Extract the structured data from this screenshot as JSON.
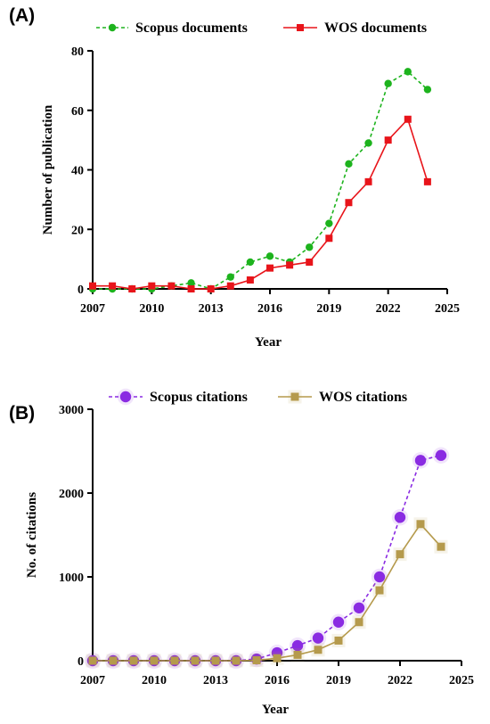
{
  "chart_data": [
    {
      "type": "line",
      "panel_label": "(A)",
      "xlabel": "Year",
      "ylabel": "Number of publication",
      "xlim": [
        2007,
        2025
      ],
      "ylim": [
        0,
        80
      ],
      "x_ticks": [
        2007,
        2010,
        2013,
        2016,
        2019,
        2022,
        2025
      ],
      "y_ticks": [
        0,
        20,
        40,
        60,
        80
      ],
      "x": [
        2007,
        2008,
        2009,
        2010,
        2011,
        2012,
        2013,
        2014,
        2015,
        2016,
        2017,
        2018,
        2019,
        2020,
        2021,
        2022,
        2023,
        2024
      ],
      "grid": false,
      "legend_position": "top",
      "series": [
        {
          "name": "Scopus documents",
          "values": [
            0,
            0,
            0,
            0,
            1,
            2,
            0,
            4,
            9,
            11,
            9,
            14,
            22,
            42,
            49,
            69,
            73,
            67
          ],
          "color": "#1db31d",
          "line_style": "dashed",
          "marker": "circle"
        },
        {
          "name": "WOS documents",
          "values": [
            1,
            1,
            0,
            1,
            1,
            0,
            0,
            1,
            3,
            7,
            8,
            9,
            17,
            29,
            36,
            50,
            57,
            36
          ],
          "color": "#e8141a",
          "line_style": "solid",
          "marker": "square"
        }
      ]
    },
    {
      "type": "line",
      "panel_label": "(B)",
      "xlabel": "Year",
      "ylabel": "No. of citations",
      "xlim": [
        2007,
        2025
      ],
      "ylim": [
        0,
        3000
      ],
      "x_ticks": [
        2007,
        2010,
        2013,
        2016,
        2019,
        2022,
        2025
      ],
      "y_ticks": [
        0,
        1000,
        2000,
        3000
      ],
      "x": [
        2007,
        2008,
        2009,
        2010,
        2011,
        2012,
        2013,
        2014,
        2015,
        2016,
        2017,
        2018,
        2019,
        2020,
        2021,
        2022,
        2023,
        2024
      ],
      "grid": false,
      "legend_position": "top",
      "series": [
        {
          "name": "Scopus citations",
          "values": [
            0,
            0,
            0,
            0,
            0,
            0,
            0,
            0,
            20,
            95,
            180,
            270,
            460,
            630,
            1000,
            1710,
            2390,
            2450
          ],
          "color": "#8a2be2",
          "line_style": "dashed",
          "marker": "circle"
        },
        {
          "name": "WOS citations",
          "values": [
            0,
            0,
            0,
            0,
            0,
            0,
            0,
            0,
            5,
            30,
            70,
            130,
            240,
            460,
            840,
            1270,
            1630,
            1360
          ],
          "color": "#b59a4c",
          "line_style": "solid",
          "marker": "square"
        }
      ]
    }
  ]
}
